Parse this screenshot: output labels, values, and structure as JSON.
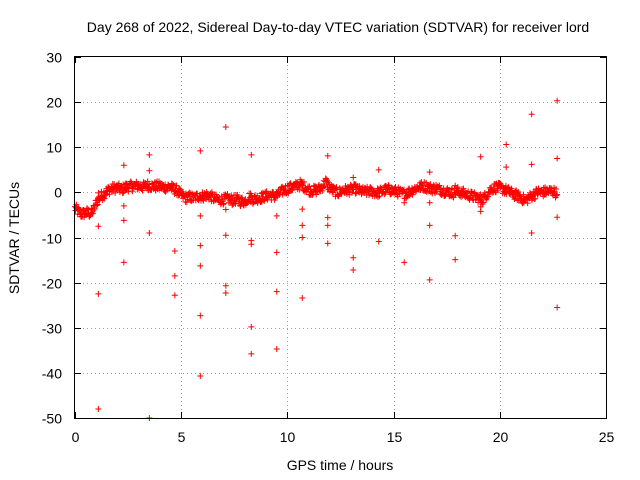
{
  "chart_data": {
    "type": "scatter",
    "title": "Day 268 of 2022, Sidereal Day-to-day VTEC variation (SDTVAR) for receiver lord",
    "xlabel": "GPS time / hours",
    "ylabel": "SDTVAR / TECUs",
    "xlim": [
      0,
      25
    ],
    "ylim": [
      -50,
      30
    ],
    "x_ticks": [
      "0",
      "5",
      "10",
      "15",
      "20",
      "25"
    ],
    "y_ticks": [
      "-50",
      "-40",
      "-30",
      "-20",
      "-10",
      "0",
      "10",
      "20",
      "30"
    ],
    "x_tick_values": [
      0,
      5,
      10,
      15,
      20,
      25
    ],
    "y_tick_values": [
      -50,
      -40,
      -30,
      -20,
      -10,
      0,
      10,
      20,
      30
    ],
    "grid": true,
    "marker": "+",
    "series": [
      {
        "name": "SDTVAR",
        "color": "#ff0000",
        "band_points": [
          [
            0.0,
            -3.5
          ],
          [
            0.15,
            -4.2
          ],
          [
            0.3,
            -4.8
          ],
          [
            0.45,
            -4.6
          ],
          [
            0.6,
            -4.4
          ],
          [
            0.75,
            -4.8
          ],
          [
            0.9,
            -3.6
          ],
          [
            1.0,
            -2.2
          ],
          [
            1.2,
            -1.0
          ],
          [
            1.4,
            -0.2
          ],
          [
            1.6,
            0.6
          ],
          [
            1.8,
            0.9
          ],
          [
            2.0,
            1.0
          ],
          [
            2.2,
            0.6
          ],
          [
            2.4,
            1.2
          ],
          [
            2.6,
            1.3
          ],
          [
            2.8,
            1.4
          ],
          [
            3.0,
            1.5
          ],
          [
            3.2,
            1.2
          ],
          [
            3.4,
            1.6
          ],
          [
            3.6,
            1.4
          ],
          [
            3.8,
            1.3
          ],
          [
            4.0,
            1.4
          ],
          [
            4.2,
            1.1
          ],
          [
            4.4,
            1.3
          ],
          [
            4.6,
            0.9
          ],
          [
            4.8,
            0.4
          ],
          [
            5.0,
            -0.6
          ],
          [
            5.2,
            -1.2
          ],
          [
            5.4,
            -1.0
          ],
          [
            5.6,
            -1.3
          ],
          [
            5.8,
            -0.8
          ],
          [
            6.0,
            -0.9
          ],
          [
            6.2,
            -0.6
          ],
          [
            6.4,
            -0.9
          ],
          [
            6.6,
            -1.5
          ],
          [
            6.8,
            -1.7
          ],
          [
            7.0,
            -1.6
          ],
          [
            7.2,
            -1.4
          ],
          [
            7.4,
            -1.8
          ],
          [
            7.6,
            -1.5
          ],
          [
            7.8,
            -2.0
          ],
          [
            8.0,
            -2.0
          ],
          [
            8.2,
            -1.0
          ],
          [
            8.4,
            -1.5
          ],
          [
            8.6,
            -1.3
          ],
          [
            8.8,
            -1.1
          ],
          [
            9.0,
            -0.8
          ],
          [
            9.2,
            -0.6
          ],
          [
            9.4,
            -0.9
          ],
          [
            9.6,
            -0.4
          ],
          [
            9.8,
            0.4
          ],
          [
            10.0,
            0.8
          ],
          [
            10.2,
            1.1
          ],
          [
            10.4,
            1.4
          ],
          [
            10.6,
            1.8
          ],
          [
            10.8,
            1.3
          ],
          [
            11.0,
            0.6
          ],
          [
            11.2,
            0.4
          ],
          [
            11.4,
            0.5
          ],
          [
            11.6,
            1.1
          ],
          [
            11.8,
            2.4
          ],
          [
            12.0,
            1.0
          ],
          [
            12.2,
            0.3
          ],
          [
            12.4,
            -0.1
          ],
          [
            12.6,
            0.4
          ],
          [
            12.8,
            0.5
          ],
          [
            13.0,
            0.6
          ],
          [
            13.2,
            0.8
          ],
          [
            13.4,
            0.4
          ],
          [
            13.6,
            0.1
          ],
          [
            13.8,
            0.2
          ],
          [
            14.0,
            0.2
          ],
          [
            14.2,
            -0.1
          ],
          [
            14.4,
            0.1
          ],
          [
            14.6,
            0.5
          ],
          [
            14.8,
            0.6
          ],
          [
            15.0,
            0.3
          ],
          [
            15.2,
            0.1
          ],
          [
            15.4,
            -0.3
          ],
          [
            15.6,
            -0.2
          ],
          [
            15.8,
            0.3
          ],
          [
            16.0,
            0.8
          ],
          [
            16.2,
            1.2
          ],
          [
            16.4,
            1.4
          ],
          [
            16.6,
            1.2
          ],
          [
            16.8,
            0.8
          ],
          [
            17.0,
            0.9
          ],
          [
            17.2,
            0.6
          ],
          [
            17.4,
            0.3
          ],
          [
            17.6,
            0.1
          ],
          [
            17.8,
            -0.1
          ],
          [
            18.0,
            0.2
          ],
          [
            18.2,
            -0.1
          ],
          [
            18.4,
            -0.4
          ],
          [
            18.6,
            -0.7
          ],
          [
            18.8,
            -1.0
          ],
          [
            19.0,
            -1.2
          ],
          [
            19.2,
            -1.6
          ],
          [
            19.4,
            -0.3
          ],
          [
            19.6,
            0.8
          ],
          [
            19.8,
            1.1
          ],
          [
            20.0,
            1.0
          ],
          [
            20.2,
            0.7
          ],
          [
            20.4,
            0.2
          ],
          [
            20.6,
            -0.3
          ],
          [
            20.8,
            -0.7
          ],
          [
            21.0,
            -1.2
          ],
          [
            21.2,
            -1.8
          ],
          [
            21.4,
            -1.1
          ],
          [
            21.6,
            -0.5
          ],
          [
            21.8,
            0.1
          ],
          [
            22.0,
            0.0
          ],
          [
            22.2,
            0.2
          ],
          [
            22.4,
            0.3
          ],
          [
            22.6,
            0.1
          ],
          [
            22.7,
            -0.5
          ]
        ],
        "outliers": [
          [
            1.1,
            -48
          ],
          [
            1.1,
            -22.5
          ],
          [
            1.1,
            -7.5
          ],
          [
            1.1,
            -0.1
          ],
          [
            2.3,
            6
          ],
          [
            2.3,
            -3
          ],
          [
            2.3,
            -6.2
          ],
          [
            2.3,
            -15.5
          ],
          [
            3.5,
            8.3
          ],
          [
            3.5,
            4.8
          ],
          [
            3.5,
            -9
          ],
          [
            3.5,
            -50
          ],
          [
            4.7,
            -13
          ],
          [
            4.7,
            -18.5
          ],
          [
            4.7,
            -22.8
          ],
          [
            5.9,
            9.2
          ],
          [
            5.9,
            -5.2
          ],
          [
            5.9,
            -11.8
          ],
          [
            5.9,
            -16.3
          ],
          [
            5.9,
            -27.3
          ],
          [
            5.9,
            -40.7
          ],
          [
            7.1,
            14.5
          ],
          [
            7.1,
            -3.8
          ],
          [
            7.1,
            -9.5
          ],
          [
            7.1,
            -20.7
          ],
          [
            7.1,
            -22.3
          ],
          [
            8.3,
            8.3
          ],
          [
            8.3,
            -10.7
          ],
          [
            8.3,
            -11.5
          ],
          [
            8.3,
            -29.8
          ],
          [
            8.3,
            -35.8
          ],
          [
            9.5,
            -5.2
          ],
          [
            9.5,
            -13.3
          ],
          [
            9.5,
            -22
          ],
          [
            9.5,
            -34.7
          ],
          [
            10.7,
            -3.7
          ],
          [
            10.7,
            -7.3
          ],
          [
            10.7,
            -10
          ],
          [
            10.7,
            -23.4
          ],
          [
            11.9,
            8.1
          ],
          [
            11.9,
            -5.6
          ],
          [
            11.9,
            -7.3
          ],
          [
            11.9,
            -11.3
          ],
          [
            13.1,
            3.3
          ],
          [
            13.1,
            -14.5
          ],
          [
            13.1,
            -17.2
          ],
          [
            14.3,
            5
          ],
          [
            14.3,
            -10.9
          ],
          [
            15.5,
            -2.3
          ],
          [
            15.5,
            -15.5
          ],
          [
            16.7,
            4.5
          ],
          [
            16.7,
            -2.3
          ],
          [
            16.7,
            -7.3
          ],
          [
            16.7,
            -19.4
          ],
          [
            17.9,
            1.5
          ],
          [
            17.9,
            -9.6
          ],
          [
            17.9,
            -14.9
          ],
          [
            19.1,
            7.9
          ],
          [
            19.1,
            -3.2
          ],
          [
            19.1,
            -4.2
          ],
          [
            20.3,
            10.6
          ],
          [
            20.3,
            5.6
          ],
          [
            21.5,
            17.3
          ],
          [
            21.5,
            6.2
          ],
          [
            21.5,
            -9
          ],
          [
            22.7,
            20.3
          ],
          [
            22.7,
            7.5
          ],
          [
            22.7,
            -5.5
          ],
          [
            22.7,
            -25.5
          ]
        ]
      }
    ]
  }
}
